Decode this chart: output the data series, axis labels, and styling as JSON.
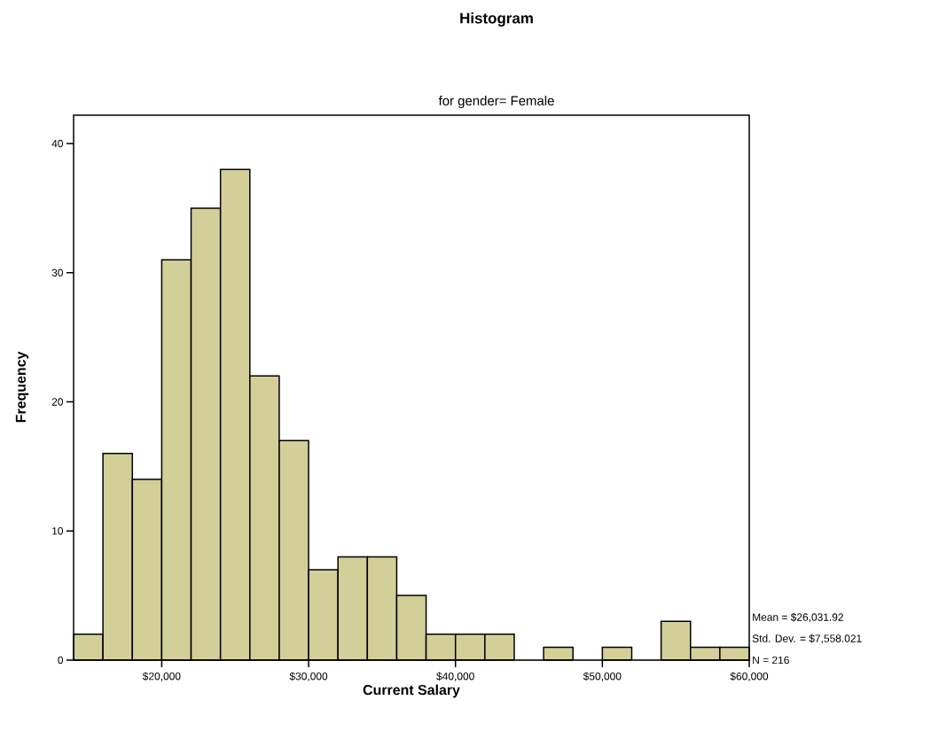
{
  "chart_data": {
    "type": "histogram",
    "title": "Histogram",
    "subtitle": "for gender= Female",
    "xlabel": "Current Salary",
    "ylabel": "Frequency",
    "bins": [
      14000,
      16000,
      18000,
      20000,
      22000,
      24000,
      26000,
      28000,
      30000,
      32000,
      34000,
      36000,
      38000,
      40000,
      42000,
      44000,
      46000,
      48000,
      50000,
      52000,
      54000,
      56000,
      58000,
      60000
    ],
    "values": [
      2,
      16,
      14,
      31,
      35,
      38,
      22,
      17,
      7,
      8,
      8,
      5,
      2,
      2,
      2,
      0,
      1,
      0,
      1,
      0,
      3,
      1,
      1
    ],
    "color": "#d3cf99",
    "xlim": [
      14000,
      60000
    ],
    "ylim": [
      0,
      42.2
    ],
    "xticks": [
      {
        "value": 20000,
        "label": "$20,000"
      },
      {
        "value": 30000,
        "label": "$30,000"
      },
      {
        "value": 40000,
        "label": "$40,000"
      },
      {
        "value": 50000,
        "label": "$50,000"
      },
      {
        "value": 60000,
        "label": "$60,000"
      }
    ],
    "yticks": [
      0,
      10,
      20,
      30,
      40
    ],
    "annotations": [
      "Mean = $26,031.92",
      "Std. Dev. = $7,558.021",
      "N = 216"
    ]
  }
}
